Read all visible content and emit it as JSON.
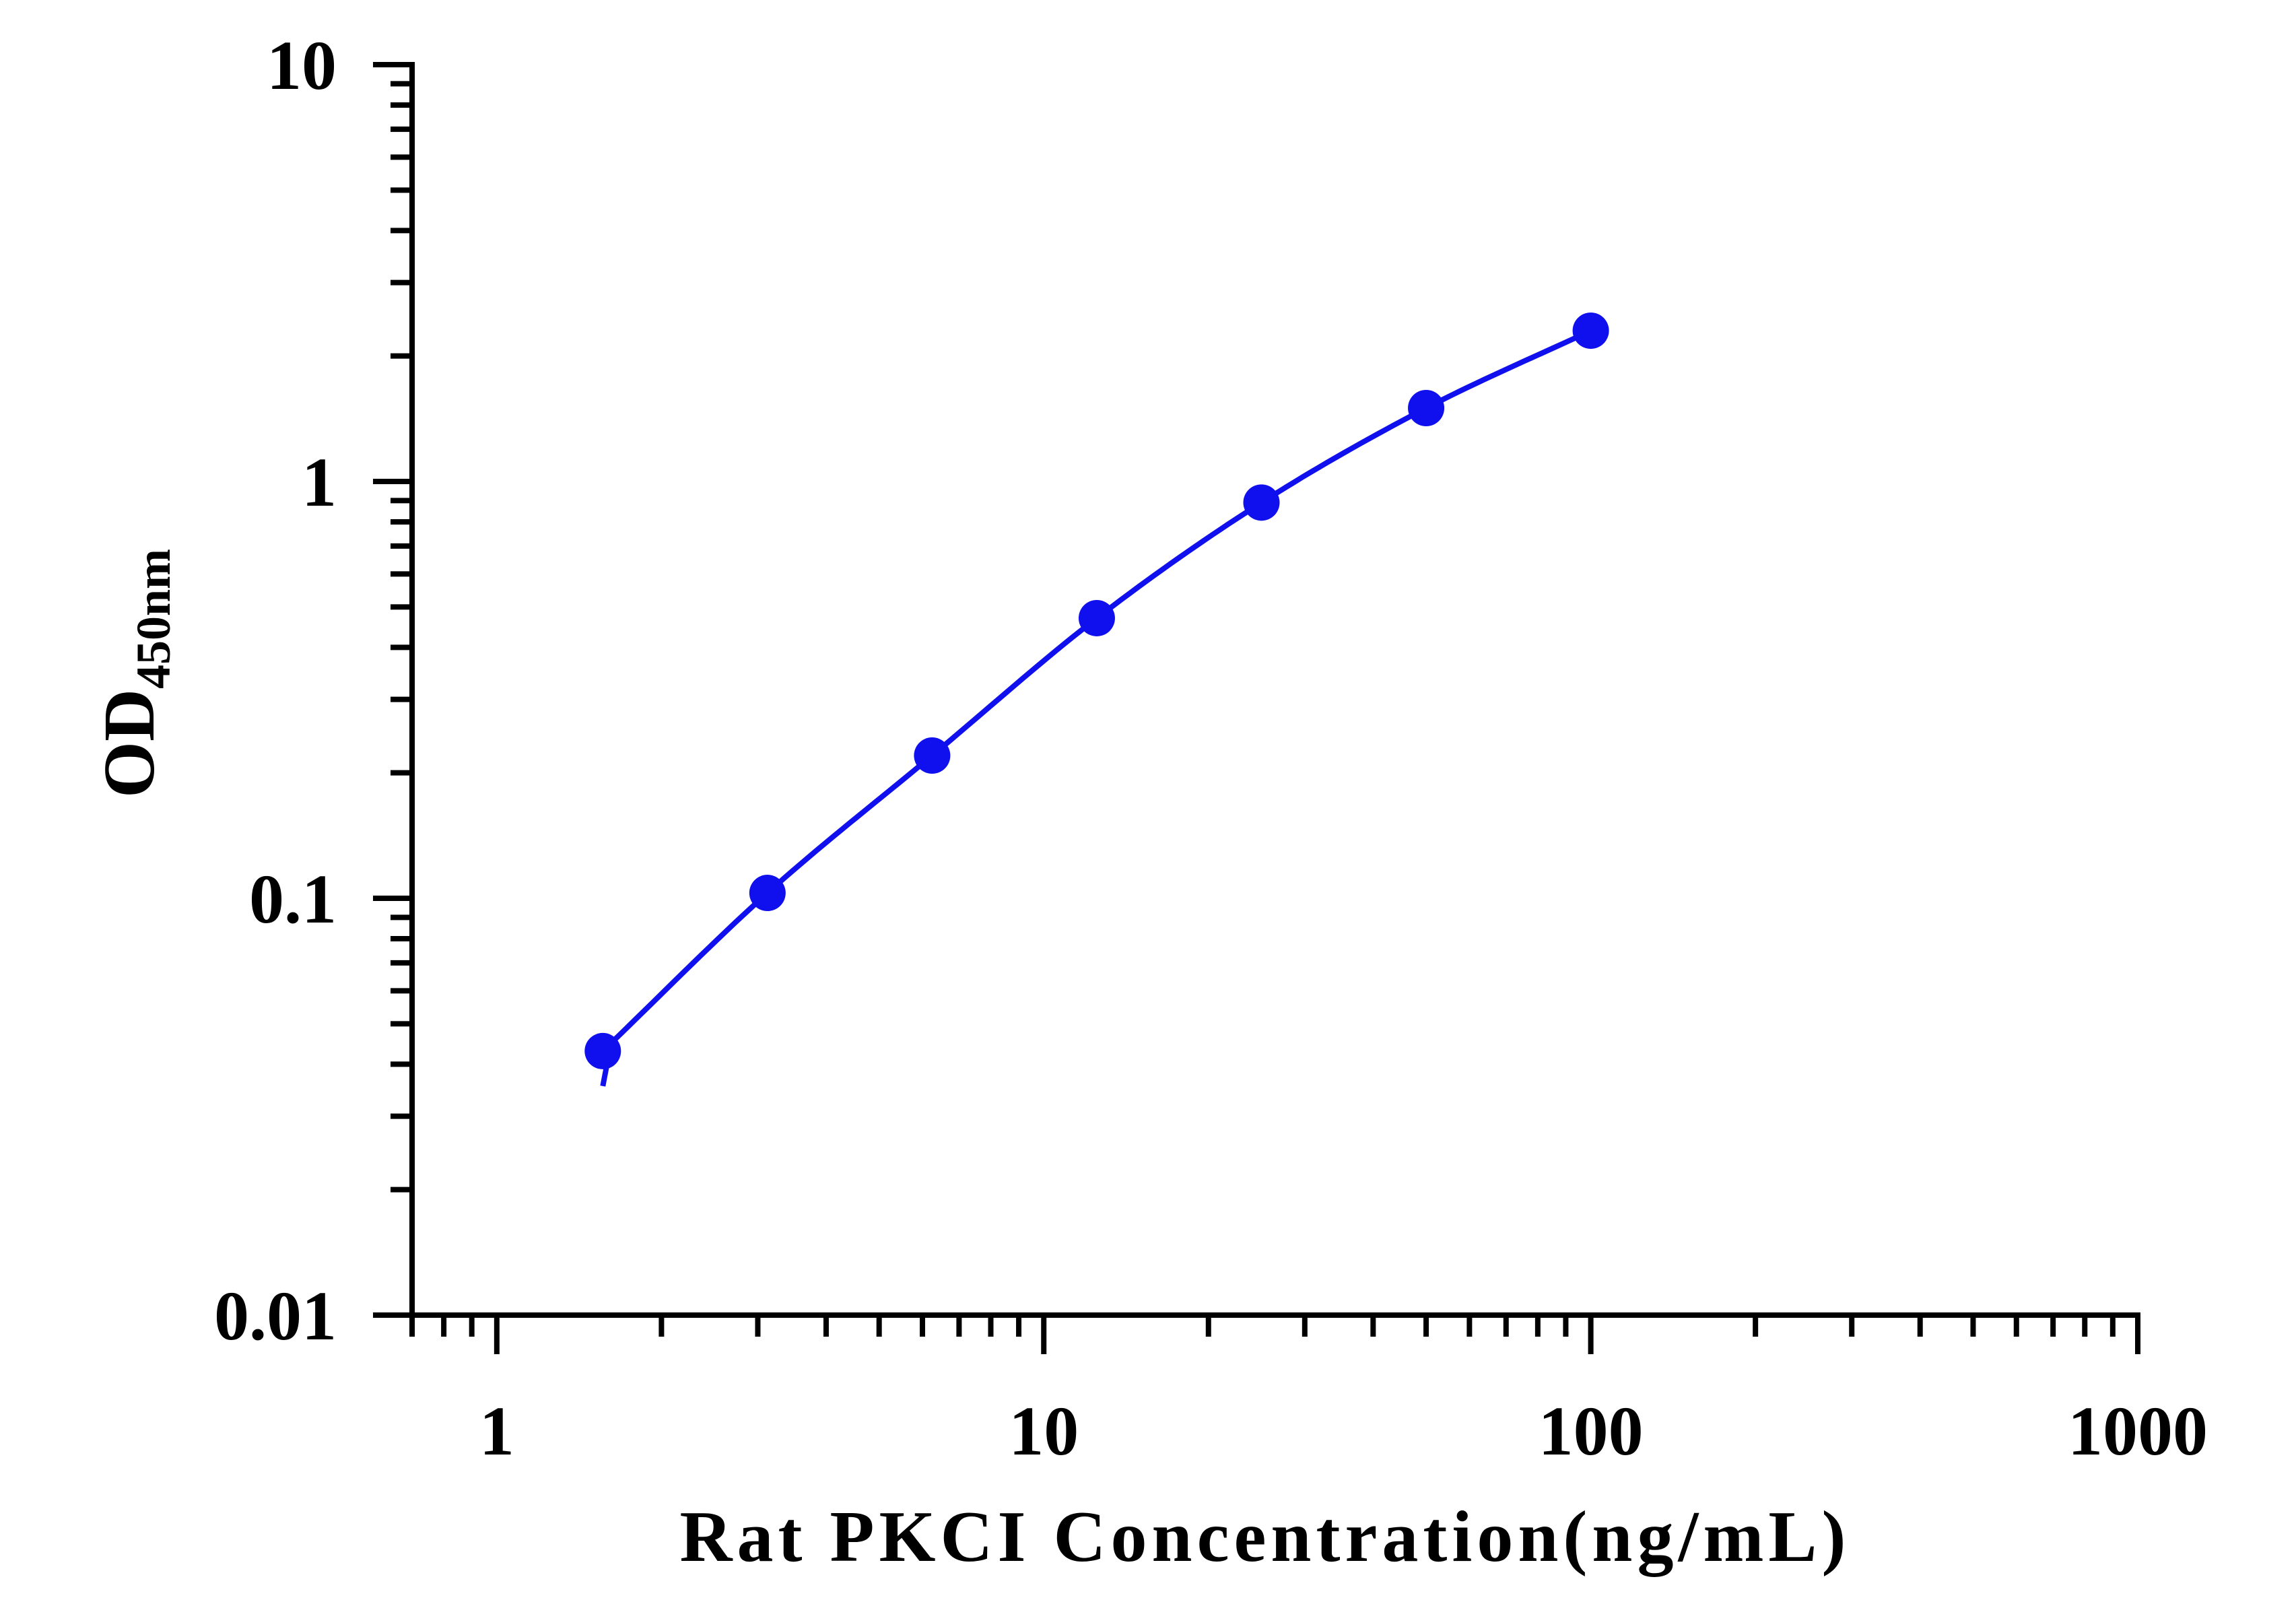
{
  "chart_data": {
    "type": "scatter",
    "title": "",
    "xlabel": "Rat PKCI Concentration(ng/mL)",
    "ylabel": {
      "main": "OD",
      "subscript": "450nm"
    },
    "x_scale": "log",
    "y_scale": "log",
    "xlim": [
      0.7,
      1000
    ],
    "ylim": [
      0.01,
      10
    ],
    "xticks": [
      {
        "value": 1,
        "label": "1"
      },
      {
        "value": 10,
        "label": "10"
      },
      {
        "value": 100,
        "label": "100"
      },
      {
        "value": 1000,
        "label": "1000"
      }
    ],
    "yticks": [
      {
        "value": 0.01,
        "label": "0.01"
      },
      {
        "value": 0.1,
        "label": "0.1"
      },
      {
        "value": 1,
        "label": "1"
      },
      {
        "value": 10,
        "label": "10"
      }
    ],
    "grid": false,
    "legend": false,
    "series": [
      {
        "x": [
          1.5625,
          3.125,
          6.25,
          12.5,
          25,
          50,
          100
        ],
        "y": [
          0.043,
          0.103,
          0.22,
          0.47,
          0.89,
          1.5,
          2.3
        ],
        "color": "#1010ee",
        "marker": "circle",
        "fit_line": true
      }
    ]
  }
}
